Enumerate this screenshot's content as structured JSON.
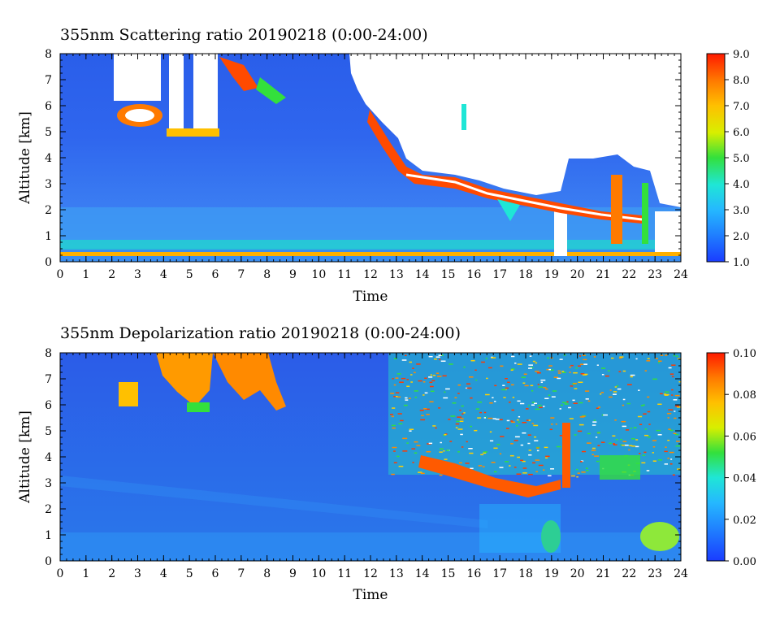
{
  "chart_data": [
    {
      "type": "heatmap",
      "title": "355nm Scattering ratio  20190218 (0:00-24:00)",
      "xlabel": "Time",
      "ylabel": "Altitude [km]",
      "xlim": [
        0,
        24
      ],
      "ylim": [
        0,
        8
      ],
      "x_ticks": [
        "0",
        "1",
        "2",
        "3",
        "4",
        "5",
        "6",
        "7",
        "8",
        "9",
        "10",
        "11",
        "12",
        "13",
        "14",
        "15",
        "16",
        "17",
        "18",
        "19",
        "20",
        "21",
        "22",
        "23",
        "24"
      ],
      "y_ticks": [
        "0",
        "1",
        "2",
        "3",
        "4",
        "5",
        "6",
        "7",
        "8"
      ],
      "colorbar": {
        "range": [
          1.0,
          9.0
        ],
        "ticks": [
          "1.0",
          "2.0",
          "3.0",
          "4.0",
          "5.0",
          "6.0",
          "7.0",
          "8.0",
          "9.0"
        ]
      },
      "features": [
        {
          "feature": "boundary layer top",
          "x": [
            0,
            24
          ],
          "y": [
            0.45,
            0.45
          ],
          "value": 4.5
        },
        {
          "feature": "cloud",
          "x": [
            2.2,
            3.6
          ],
          "y": [
            5.4,
            6.1
          ],
          "value": 9.0
        },
        {
          "feature": "cloud",
          "x": [
            4.4,
            6.1
          ],
          "y": [
            4.7,
            5.0
          ],
          "value": 8.0
        },
        {
          "feature": "cloud",
          "x": [
            6.2,
            7.4
          ],
          "y": [
            6.8,
            7.8
          ],
          "value": 7.5
        },
        {
          "feature": "descending cloud base",
          "x": [
            12.5,
            23
          ],
          "y": [
            4.8,
            1.8
          ],
          "value": 9.0
        }
      ]
    },
    {
      "type": "heatmap",
      "title": "355nm Depolarization ratio  20190218 (0:00-24:00)",
      "xlabel": "Time",
      "ylabel": "Altitude [km]",
      "xlim": [
        0,
        24
      ],
      "ylim": [
        0,
        8
      ],
      "x_ticks": [
        "0",
        "1",
        "2",
        "3",
        "4",
        "5",
        "6",
        "7",
        "8",
        "9",
        "10",
        "11",
        "12",
        "13",
        "14",
        "15",
        "16",
        "17",
        "18",
        "19",
        "20",
        "21",
        "22",
        "23",
        "24"
      ],
      "y_ticks": [
        "0",
        "1",
        "2",
        "3",
        "4",
        "5",
        "6",
        "7",
        "8"
      ],
      "colorbar": {
        "range": [
          0.0,
          0.1
        ],
        "ticks": [
          "0.00",
          "0.02",
          "0.04",
          "0.06",
          "0.08",
          "0.10"
        ]
      },
      "features": [
        {
          "feature": "ice cloud",
          "x": [
            3.8,
            6.0
          ],
          "y": [
            6.8,
            8.0
          ],
          "value": 0.085
        },
        {
          "feature": "ice cloud",
          "x": [
            6.2,
            8.6
          ],
          "y": [
            6.0,
            8.0
          ],
          "value": 0.075
        },
        {
          "feature": "noisy upper layer",
          "x": [
            12.8,
            24
          ],
          "y": [
            3.0,
            8.0
          ],
          "value": 0.05
        },
        {
          "feature": "dust near surface",
          "x": [
            22.8,
            24
          ],
          "y": [
            0.2,
            1.2
          ],
          "value": 0.045
        }
      ]
    }
  ]
}
